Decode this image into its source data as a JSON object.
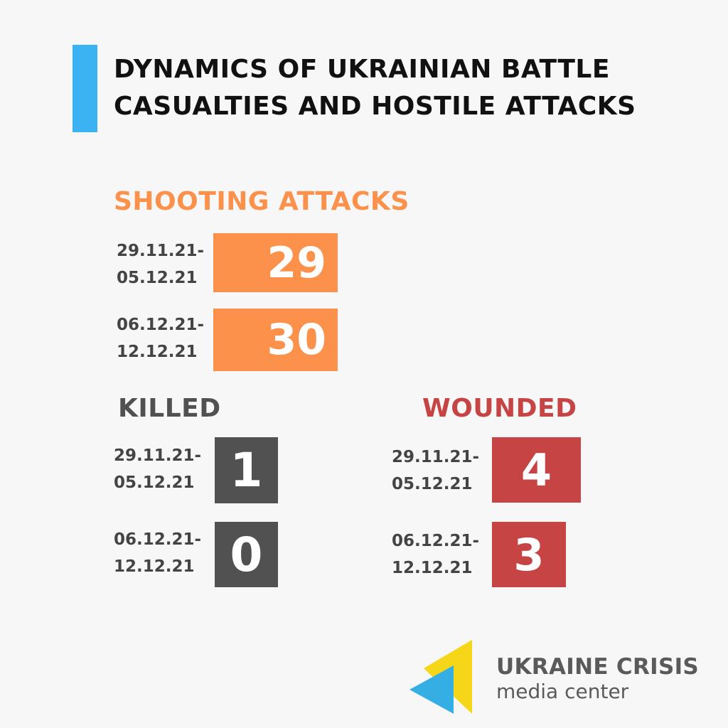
{
  "title": {
    "line1": "DYNAMICS OF UKRAINIAN BATTLE",
    "line2": "CASUALTIES AND HOSTILE ATTACKS"
  },
  "colors": {
    "accent": "#3bb3f2",
    "shooting": "#fb914a",
    "killed": "#515151",
    "wounded": "#c64444",
    "logo_yellow": "#f6d619",
    "logo_blue": "#35aee3"
  },
  "chart_data": {
    "type": "table",
    "title": "DYNAMICS OF UKRAINIAN BATTLE CASUALTIES AND HOSTILE ATTACKS",
    "categories": [
      "29.11.21-05.12.21",
      "06.12.21-12.12.21"
    ],
    "series": [
      {
        "name": "SHOOTING  ATTACKS",
        "values": [
          29,
          30
        ]
      },
      {
        "name": "KILLED",
        "values": [
          1,
          0
        ]
      },
      {
        "name": "WOUNDED",
        "values": [
          4,
          3
        ]
      }
    ]
  },
  "sections": {
    "shooting": {
      "heading": "SHOOTING  ATTACKS",
      "rows": [
        {
          "start": "29.11.21-",
          "end": "05.12.21",
          "value": "29"
        },
        {
          "start": "06.12.21-",
          "end": "12.12.21",
          "value": "30"
        }
      ]
    },
    "killed": {
      "heading": "KILLED",
      "rows": [
        {
          "start": "29.11.21-",
          "end": "05.12.21",
          "value": "1"
        },
        {
          "start": "06.12.21-",
          "end": "12.12.21",
          "value": "0"
        }
      ]
    },
    "wounded": {
      "heading": "WOUNDED",
      "rows": [
        {
          "start": "29.11.21-",
          "end": "05.12.21",
          "value": "4"
        },
        {
          "start": "06.12.21-",
          "end": "12.12.21",
          "value": "3"
        }
      ]
    }
  },
  "logo": {
    "name": "UKRAINE CRISIS",
    "subtitle": "media center"
  }
}
